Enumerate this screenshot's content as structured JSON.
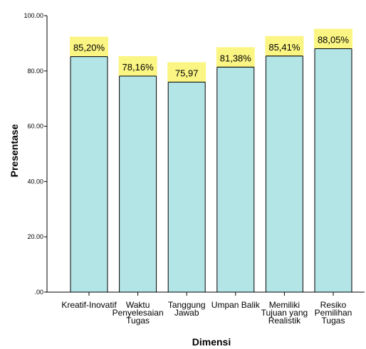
{
  "chart_data": {
    "type": "bar",
    "xlabel": "Dimensi",
    "ylabel": "Presentase",
    "ylim": [
      0,
      100
    ],
    "yticks": [
      0,
      20,
      40,
      60,
      80,
      100
    ],
    "ytick_labels": [
      ".00",
      "20.00",
      "40.00",
      "60.00",
      "80.00",
      "100.00"
    ],
    "grid": false,
    "categories": [
      [
        "Kreatif-Inovatif"
      ],
      [
        "Waktu",
        "Penyelesaian",
        "Tugas"
      ],
      [
        "Tanggung",
        "Jawab"
      ],
      [
        "Umpan Balik"
      ],
      [
        "Memiliki",
        "Tujuan yang",
        "Realistik"
      ],
      [
        "Resiko",
        "Pemilihan",
        "Tugas"
      ]
    ],
    "values": [
      85.2,
      78.16,
      75.97,
      81.38,
      85.41,
      88.05
    ],
    "value_labels": [
      "85,20%",
      "78,16%",
      "75,97",
      "81,38%",
      "85,41%",
      "88,05%"
    ],
    "bar_color": "#b3e4e6",
    "bar_edge_color": "#000000",
    "label_bg_color": "#fbf583"
  }
}
